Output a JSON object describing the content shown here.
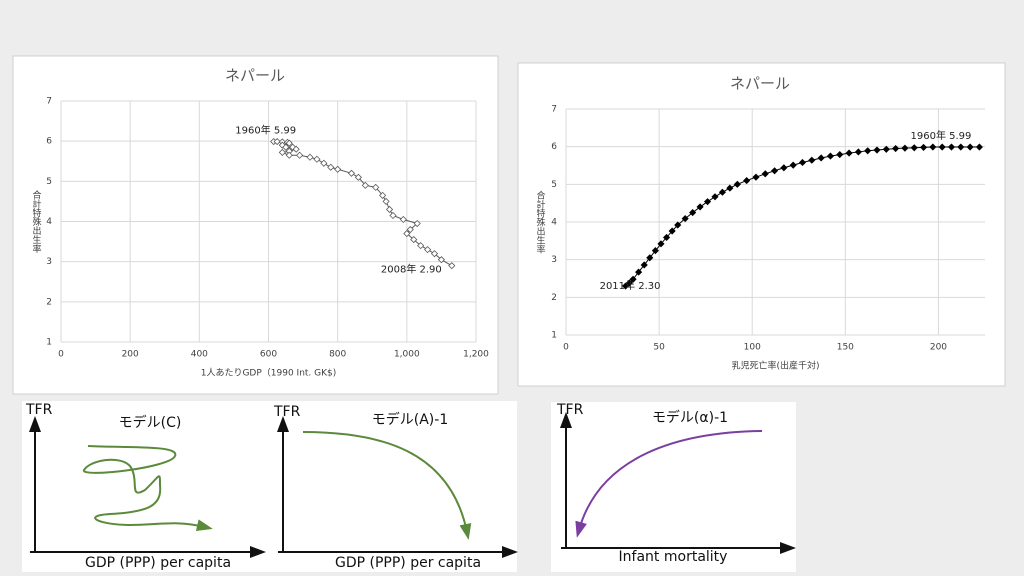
{
  "chart_data": [
    {
      "type": "line",
      "title": "ネパール",
      "x_label": "1人あたりGDP（1990 Int. GK$)",
      "y_label": "合計特殊出生率",
      "x": [
        615,
        625,
        640,
        655,
        660,
        640,
        650,
        670,
        680,
        660,
        640,
        660,
        690,
        720,
        740,
        760,
        780,
        800,
        840,
        860,
        880,
        910,
        930,
        940,
        950,
        960,
        990,
        1030,
        1010,
        1000,
        1020,
        1040,
        1060,
        1080,
        1100,
        1130
      ],
      "values": [
        5.99,
        5.99,
        5.98,
        5.97,
        5.95,
        5.9,
        5.85,
        5.85,
        5.8,
        5.75,
        5.72,
        5.65,
        5.65,
        5.6,
        5.55,
        5.45,
        5.35,
        5.3,
        5.2,
        5.1,
        4.9,
        4.85,
        4.65,
        4.5,
        4.3,
        4.15,
        4.05,
        3.95,
        3.8,
        3.7,
        3.55,
        3.4,
        3.3,
        3.2,
        3.05,
        2.9
      ],
      "annotations": [
        "1960年 5.99",
        "2008年 2.90"
      ],
      "color": "#595959",
      "marker_fill": "#ffffff",
      "xlim": [
        0,
        1200
      ],
      "xticks": [
        0,
        200,
        400,
        600,
        800,
        {
          "value": 1000,
          "label": "1,000"
        },
        {
          "value": 1200,
          "label": "1,200"
        }
      ],
      "ylim": [
        1,
        7
      ],
      "yticks": [
        1,
        2,
        3,
        4,
        5,
        6,
        7
      ],
      "grid": true
    },
    {
      "type": "line",
      "title": "ネパール",
      "x_label": "乳児死亡率(出産千対)",
      "y_label": "合計特殊出生率",
      "x": [
        222,
        217,
        212,
        207,
        202,
        197,
        192,
        187,
        182,
        177,
        172,
        167,
        162,
        157,
        152,
        147,
        142,
        137,
        132,
        127,
        122,
        117,
        112,
        107,
        102,
        97,
        92,
        88,
        84,
        80,
        76,
        72,
        68,
        64,
        60,
        57,
        54,
        51,
        48,
        45,
        42,
        39,
        36,
        34,
        32
      ],
      "values": [
        5.99,
        5.99,
        5.99,
        5.99,
        5.99,
        5.99,
        5.98,
        5.97,
        5.96,
        5.95,
        5.93,
        5.91,
        5.89,
        5.86,
        5.83,
        5.79,
        5.75,
        5.7,
        5.64,
        5.58,
        5.51,
        5.44,
        5.36,
        5.28,
        5.19,
        5.1,
        5.0,
        4.9,
        4.79,
        4.67,
        4.54,
        4.4,
        4.25,
        4.09,
        3.92,
        3.76,
        3.59,
        3.42,
        3.24,
        3.05,
        2.86,
        2.67,
        2.48,
        2.38,
        2.3
      ],
      "annotations": [
        "1960年 5.99",
        "2011年 2.30"
      ],
      "color": "#000000",
      "marker_fill": "#000000",
      "xlim": [
        0,
        225
      ],
      "xticks": [
        0,
        50,
        100,
        150,
        200
      ],
      "ylim": [
        1,
        7
      ],
      "yticks": [
        1,
        2,
        3,
        4,
        5,
        6,
        7
      ],
      "grid": true
    }
  ],
  "diagrams": [
    {
      "axis_label": "TFR",
      "title": "モデル(C)",
      "x_label": "GDP (PPP) per capita"
    },
    {
      "axis_label": "TFR",
      "title": "モデル(A)-1",
      "x_label": "GDP (PPP) per capita"
    },
    {
      "axis_label": "TFR",
      "title": "モデル(α)-1",
      "x_label": "Infant mortality"
    }
  ]
}
